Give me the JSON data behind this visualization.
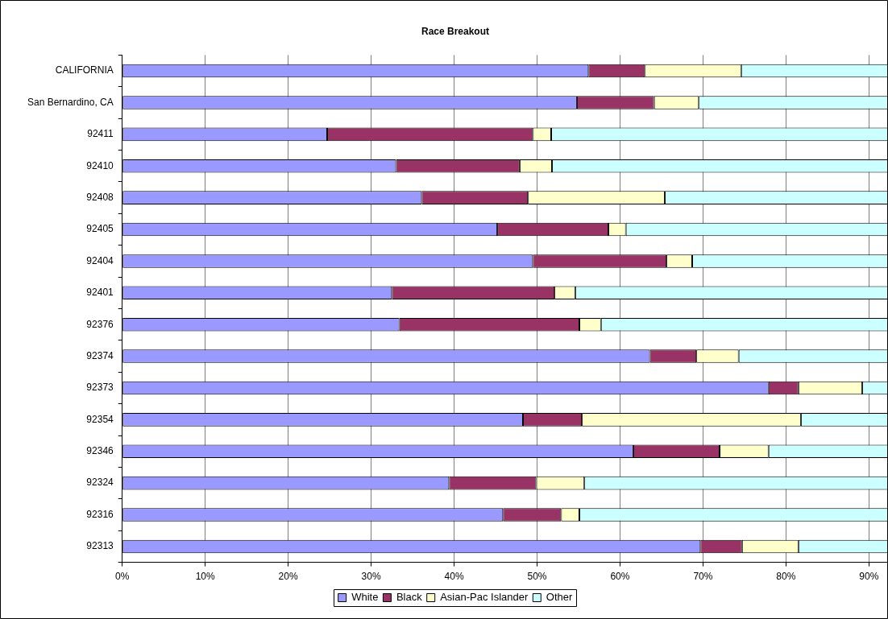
{
  "chart_data": {
    "type": "bar",
    "orientation": "horizontal",
    "stacked": true,
    "title": "Race Breakout",
    "categories": [
      "CALIFORNIA",
      "San Bernardino, CA",
      "92411",
      "92410",
      "92408",
      "92405",
      "92404",
      "92401",
      "92376",
      "92374",
      "92373",
      "92354",
      "92346",
      "92324",
      "92316",
      "92313"
    ],
    "series": [
      {
        "name": "White",
        "color": "#9999ff",
        "values": [
          56.2,
          54.8,
          24.7,
          33.0,
          36.1,
          45.2,
          49.5,
          32.5,
          33.4,
          63.6,
          77.9,
          48.3,
          61.6,
          39.4,
          45.9,
          69.7
        ]
      },
      {
        "name": "Black",
        "color": "#993366",
        "values": [
          6.8,
          9.3,
          24.8,
          14.9,
          12.8,
          13.4,
          16.1,
          19.6,
          21.7,
          5.6,
          3.6,
          7.1,
          10.4,
          10.5,
          7.0,
          5.0
        ]
      },
      {
        "name": "Asian-Pac Islander",
        "color": "#ffffcc",
        "values": [
          11.6,
          5.4,
          2.2,
          3.9,
          16.5,
          2.1,
          3.1,
          2.5,
          2.6,
          5.1,
          7.7,
          26.4,
          5.9,
          5.8,
          2.2,
          6.8
        ]
      },
      {
        "name": "Other",
        "color": "#ccffff",
        "values": [
          17.7,
          22.8,
          40.6,
          40.5,
          26.9,
          31.6,
          23.6,
          37.7,
          34.6,
          18.0,
          3.1,
          10.5,
          14.4,
          36.6,
          37.2,
          10.8
        ]
      }
    ],
    "xlim": [
      0,
      92.3
    ],
    "xticks": [
      {
        "value": 0,
        "label": "0%"
      },
      {
        "value": 10,
        "label": "10%"
      },
      {
        "value": 20,
        "label": "20%"
      },
      {
        "value": 30,
        "label": "30%"
      },
      {
        "value": 40,
        "label": "40%"
      },
      {
        "value": 50,
        "label": "50%"
      },
      {
        "value": 60,
        "label": "60%"
      },
      {
        "value": 70,
        "label": "70%"
      },
      {
        "value": 80,
        "label": "80%"
      },
      {
        "value": 90,
        "label": "90%"
      }
    ],
    "grid": "x",
    "legend": "bottom"
  }
}
